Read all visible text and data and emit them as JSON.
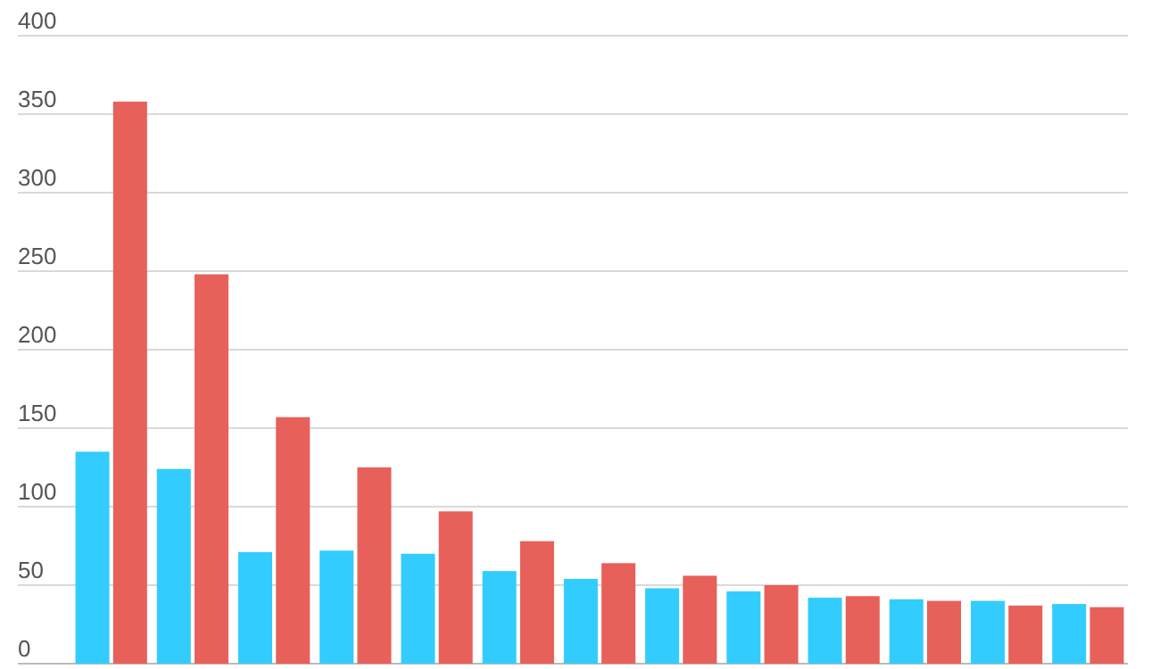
{
  "chart_data": {
    "type": "bar",
    "categories": [
      null,
      null,
      null,
      null,
      null,
      null,
      null,
      null,
      null,
      null,
      null,
      null,
      null
    ],
    "series": [
      {
        "color": "#33ccff",
        "values": [
          135,
          124,
          71,
          72,
          70,
          59,
          54,
          48,
          46,
          42,
          41,
          40,
          38
        ]
      },
      {
        "color": "#e8605a",
        "values": [
          358,
          248,
          157,
          125,
          97,
          78,
          64,
          56,
          50,
          43,
          40,
          37,
          36
        ]
      }
    ],
    "ylim": [
      0,
      400
    ],
    "yticks": [
      0,
      50,
      100,
      150,
      200,
      250,
      300,
      350,
      400
    ],
    "grid": "y"
  }
}
